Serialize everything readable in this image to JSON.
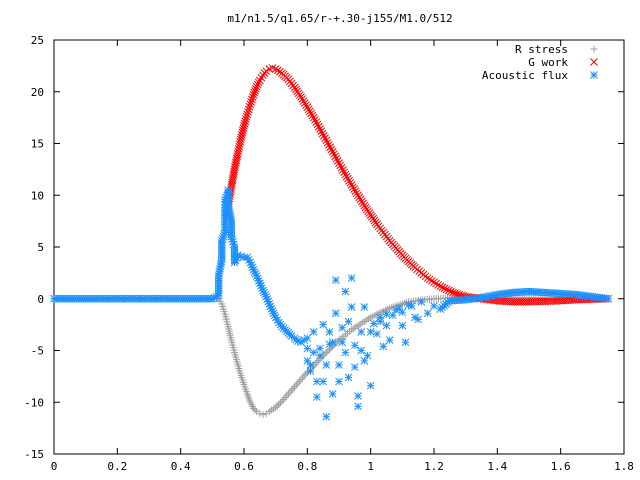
{
  "chart_data": {
    "type": "scatter",
    "title": "m1/n1.5/q1.65/r-+.30-j155/M1.0/512",
    "xlabel": "",
    "ylabel": "",
    "xlim": [
      0,
      1.8
    ],
    "ylim": [
      -15,
      25
    ],
    "xticks": [
      0,
      0.2,
      0.4,
      0.6,
      0.8,
      1,
      1.2,
      1.4,
      1.6,
      1.8
    ],
    "yticks": [
      -15,
      -10,
      -5,
      0,
      5,
      10,
      15,
      20,
      25
    ],
    "grid": false,
    "legend_position": "top-right",
    "series": [
      {
        "name": "R stress",
        "marker": "plus",
        "color": "#a0a0a0",
        "points": [
          [
            0.0,
            0
          ],
          [
            0.2,
            0
          ],
          [
            0.4,
            0
          ],
          [
            0.52,
            0
          ],
          [
            0.53,
            -0.5
          ],
          [
            0.54,
            -1.5
          ],
          [
            0.55,
            -2.7
          ],
          [
            0.56,
            -4.0
          ],
          [
            0.57,
            -5.2
          ],
          [
            0.58,
            -6.3
          ],
          [
            0.59,
            -7.4
          ],
          [
            0.6,
            -8.3
          ],
          [
            0.61,
            -9.2
          ],
          [
            0.62,
            -10.0
          ],
          [
            0.63,
            -10.6
          ],
          [
            0.64,
            -10.9
          ],
          [
            0.65,
            -11.1
          ],
          [
            0.66,
            -11.2
          ],
          [
            0.67,
            -11.1
          ],
          [
            0.68,
            -10.9
          ],
          [
            0.7,
            -10.5
          ],
          [
            0.72,
            -9.9
          ],
          [
            0.74,
            -9.2
          ],
          [
            0.76,
            -8.5
          ],
          [
            0.78,
            -7.8
          ],
          [
            0.8,
            -7.1
          ],
          [
            0.82,
            -6.5
          ],
          [
            0.84,
            -5.8
          ],
          [
            0.86,
            -5.2
          ],
          [
            0.88,
            -4.6
          ],
          [
            0.9,
            -4.0
          ],
          [
            0.92,
            -3.5
          ],
          [
            0.94,
            -3.0
          ],
          [
            0.96,
            -2.6
          ],
          [
            0.98,
            -2.2
          ],
          [
            1.0,
            -1.8
          ],
          [
            1.02,
            -1.5
          ],
          [
            1.04,
            -1.2
          ],
          [
            1.06,
            -0.9
          ],
          [
            1.08,
            -0.7
          ],
          [
            1.1,
            -0.5
          ],
          [
            1.12,
            -0.3
          ],
          [
            1.15,
            -0.15
          ],
          [
            1.2,
            0
          ],
          [
            1.3,
            0.1
          ],
          [
            1.4,
            0.15
          ],
          [
            1.5,
            0.1
          ],
          [
            1.6,
            0.05
          ],
          [
            1.75,
            0
          ]
        ]
      },
      {
        "name": "G work",
        "marker": "cross",
        "color": "#ff0000",
        "points": [
          [
            0.55,
            9.0
          ],
          [
            0.56,
            10.8
          ],
          [
            0.57,
            12.5
          ],
          [
            0.58,
            14.0
          ],
          [
            0.59,
            15.4
          ],
          [
            0.6,
            16.7
          ],
          [
            0.61,
            17.8
          ],
          [
            0.62,
            18.8
          ],
          [
            0.63,
            19.7
          ],
          [
            0.64,
            20.5
          ],
          [
            0.65,
            21.1
          ],
          [
            0.66,
            21.6
          ],
          [
            0.67,
            22.0
          ],
          [
            0.68,
            22.2
          ],
          [
            0.69,
            22.3
          ],
          [
            0.7,
            22.2
          ],
          [
            0.72,
            21.8
          ],
          [
            0.74,
            21.2
          ],
          [
            0.76,
            20.4
          ],
          [
            0.78,
            19.5
          ],
          [
            0.8,
            18.5
          ],
          [
            0.82,
            17.5
          ],
          [
            0.84,
            16.4
          ],
          [
            0.86,
            15.3
          ],
          [
            0.88,
            14.2
          ],
          [
            0.9,
            13.1
          ],
          [
            0.92,
            12.0
          ],
          [
            0.94,
            11.0
          ],
          [
            0.96,
            10.0
          ],
          [
            0.98,
            9.0
          ],
          [
            1.0,
            8.1
          ],
          [
            1.02,
            7.2
          ],
          [
            1.04,
            6.4
          ],
          [
            1.06,
            5.6
          ],
          [
            1.08,
            4.9
          ],
          [
            1.1,
            4.2
          ],
          [
            1.12,
            3.6
          ],
          [
            1.14,
            3.0
          ],
          [
            1.16,
            2.5
          ],
          [
            1.18,
            2.0
          ],
          [
            1.2,
            1.6
          ],
          [
            1.22,
            1.2
          ],
          [
            1.24,
            0.9
          ],
          [
            1.26,
            0.6
          ],
          [
            1.28,
            0.4
          ],
          [
            1.3,
            0.2
          ],
          [
            1.35,
            0
          ],
          [
            1.4,
            -0.2
          ],
          [
            1.45,
            -0.3
          ],
          [
            1.5,
            -0.3
          ],
          [
            1.55,
            -0.25
          ],
          [
            1.6,
            -0.2
          ],
          [
            1.65,
            -0.1
          ],
          [
            1.7,
            -0.05
          ],
          [
            1.75,
            0
          ]
        ]
      },
      {
        "name": "Acoustic flux",
        "marker": "star",
        "color": "#1e90ff",
        "points": [
          [
            0.0,
            0
          ],
          [
            0.1,
            0
          ],
          [
            0.2,
            0
          ],
          [
            0.3,
            0
          ],
          [
            0.4,
            0
          ],
          [
            0.5,
            0
          ],
          [
            0.52,
            0.3
          ],
          [
            0.52,
            2.2
          ],
          [
            0.53,
            3.8
          ],
          [
            0.53,
            5.6
          ],
          [
            0.54,
            6.4
          ],
          [
            0.54,
            7.4
          ],
          [
            0.54,
            8.8
          ],
          [
            0.54,
            9.6
          ],
          [
            0.55,
            10.2
          ],
          [
            0.55,
            10.5
          ],
          [
            0.55,
            9.0
          ],
          [
            0.56,
            7.5
          ],
          [
            0.56,
            6.0
          ],
          [
            0.57,
            5.0
          ],
          [
            0.57,
            3.5
          ],
          [
            0.58,
            4.2
          ],
          [
            0.59,
            4.1
          ],
          [
            0.6,
            4.0
          ],
          [
            0.61,
            4.0
          ],
          [
            0.62,
            3.5
          ],
          [
            0.63,
            2.8
          ],
          [
            0.64,
            2.2
          ],
          [
            0.65,
            1.5
          ],
          [
            0.66,
            0.8
          ],
          [
            0.67,
            0.2
          ],
          [
            0.68,
            -0.5
          ],
          [
            0.69,
            -1.2
          ],
          [
            0.7,
            -1.8
          ],
          [
            0.71,
            -2.3
          ],
          [
            0.72,
            -2.7
          ],
          [
            0.73,
            -3.0
          ],
          [
            0.74,
            -3.3
          ],
          [
            0.75,
            -3.6
          ],
          [
            0.76,
            -3.8
          ],
          [
            0.77,
            -4.1
          ],
          [
            0.78,
            -4.2
          ],
          [
            0.79,
            -4.0
          ],
          [
            0.8,
            -3.8
          ],
          [
            0.8,
            -6.0
          ],
          [
            0.8,
            -4.8
          ],
          [
            0.81,
            -6.4
          ],
          [
            0.81,
            -7.0
          ],
          [
            0.82,
            -3.2
          ],
          [
            0.82,
            -5.2
          ],
          [
            0.83,
            -8.0
          ],
          [
            0.83,
            -9.5
          ],
          [
            0.84,
            -5.5
          ],
          [
            0.84,
            -4.8
          ],
          [
            0.85,
            -2.5
          ],
          [
            0.85,
            -8.0
          ],
          [
            0.86,
            -11.4
          ],
          [
            0.86,
            -6.4
          ],
          [
            0.87,
            -3.2
          ],
          [
            0.87,
            -4.4
          ],
          [
            0.88,
            -9.2
          ],
          [
            0.88,
            -4.2
          ],
          [
            0.89,
            -1.4
          ],
          [
            0.89,
            1.8
          ],
          [
            0.9,
            -6.4
          ],
          [
            0.9,
            -8.0
          ],
          [
            0.91,
            -2.8
          ],
          [
            0.91,
            -4.2
          ],
          [
            0.92,
            0.7
          ],
          [
            0.92,
            -5.2
          ],
          [
            0.93,
            -7.6
          ],
          [
            0.93,
            -2.2
          ],
          [
            0.94,
            -0.8
          ],
          [
            0.94,
            2.0
          ],
          [
            0.95,
            -4.5
          ],
          [
            0.95,
            -6.6
          ],
          [
            0.96,
            -10.4
          ],
          [
            0.96,
            -9.4
          ],
          [
            0.97,
            -3.2
          ],
          [
            0.97,
            -5.0
          ],
          [
            0.98,
            -6.0
          ],
          [
            0.98,
            -0.8
          ],
          [
            0.99,
            -5.5
          ],
          [
            1.0,
            -8.4
          ],
          [
            1.0,
            -3.2
          ],
          [
            1.01,
            -2.4
          ],
          [
            1.02,
            -3.4
          ],
          [
            1.03,
            -2.2
          ],
          [
            1.03,
            -1.8
          ],
          [
            1.04,
            -4.6
          ],
          [
            1.05,
            -2.6
          ],
          [
            1.05,
            -1.5
          ],
          [
            1.06,
            -4.0
          ],
          [
            1.07,
            -1.6
          ],
          [
            1.08,
            -1.1
          ],
          [
            1.09,
            -0.9
          ],
          [
            1.1,
            -1.3
          ],
          [
            1.1,
            -2.6
          ],
          [
            1.11,
            -4.2
          ],
          [
            1.12,
            -0.6
          ],
          [
            1.13,
            -0.7
          ],
          [
            1.14,
            -1.8
          ],
          [
            1.15,
            -2.0
          ],
          [
            1.16,
            -0.3
          ],
          [
            1.18,
            -1.4
          ],
          [
            1.2,
            -0.7
          ],
          [
            1.22,
            -1.0
          ],
          [
            1.25,
            -0.2
          ],
          [
            1.3,
            -0.1
          ],
          [
            1.35,
            0.1
          ],
          [
            1.4,
            0.4
          ],
          [
            1.45,
            0.6
          ],
          [
            1.5,
            0.7
          ],
          [
            1.55,
            0.6
          ],
          [
            1.6,
            0.5
          ],
          [
            1.65,
            0.4
          ],
          [
            1.7,
            0.2
          ],
          [
            1.75,
            0
          ]
        ]
      }
    ]
  }
}
